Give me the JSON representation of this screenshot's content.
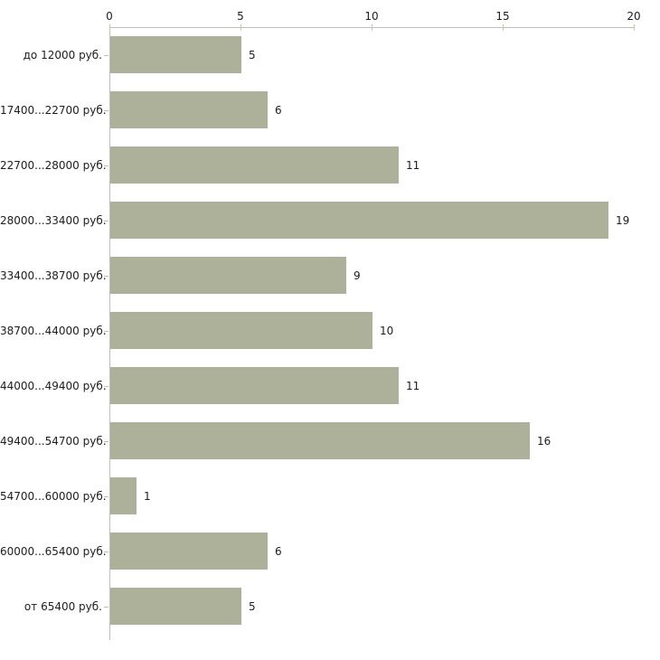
{
  "chart_data": {
    "type": "bar",
    "orientation": "horizontal",
    "title": "",
    "xlabel": "",
    "ylabel": "",
    "categories": [
      "до 12000 руб.",
      "17400...22700 руб.",
      "22700...28000 руб.",
      "28000...33400 руб.",
      "33400...38700 руб.",
      "38700...44000 руб.",
      "44000...49400 руб.",
      "49400...54700 руб.",
      "54700...60000 руб.",
      "60000...65400 руб.",
      "от 65400 руб."
    ],
    "values": [
      5,
      6,
      11,
      19,
      9,
      10,
      11,
      16,
      1,
      6,
      5
    ],
    "value_labels": [
      "5",
      "6",
      "11",
      "19",
      "9",
      "10",
      "11",
      "16",
      "1",
      "6",
      "5"
    ],
    "x_ticks": [
      0,
      5,
      10,
      15,
      20
    ],
    "xlim": [
      0,
      20
    ],
    "axis_position": "top",
    "grid": false,
    "legend": false,
    "colors": {
      "bar": "#adb199",
      "axis_line": "#bdbdbd",
      "x_tick": "#cbc69b",
      "category_tick": "#c9bd9b",
      "text": "#1c1c1c",
      "background": "#ffffff"
    }
  }
}
